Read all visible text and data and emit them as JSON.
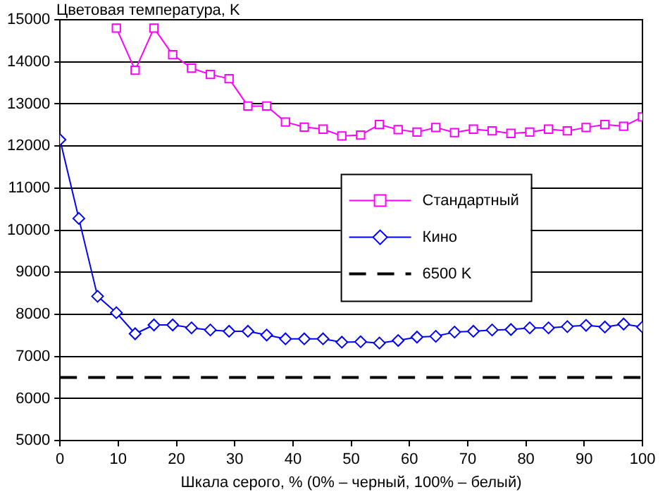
{
  "chart_data": {
    "type": "line",
    "ylabel": "Цветовая температура, K",
    "xlabel": "Шкала серого, % (0% – черный, 100% – белый)",
    "x": [
      0,
      3.23,
      6.45,
      9.68,
      12.9,
      16.13,
      19.35,
      22.58,
      25.81,
      29.03,
      32.26,
      35.48,
      38.71,
      41.94,
      45.16,
      48.39,
      51.61,
      54.84,
      58.06,
      61.29,
      64.52,
      67.74,
      70.97,
      74.19,
      77.42,
      80.65,
      83.87,
      87.1,
      90.32,
      93.55,
      96.77,
      100
    ],
    "series": [
      {
        "name": "Стандартный",
        "color": "#ff00ff",
        "marker": "square",
        "values": [
          null,
          null,
          null,
          14800,
          13800,
          14800,
          14170,
          13850,
          13700,
          13600,
          12950,
          12950,
          12570,
          12450,
          12400,
          12240,
          12260,
          12510,
          12390,
          12330,
          12440,
          12320,
          12400,
          12360,
          12300,
          12330,
          12400,
          12360,
          12440,
          12510,
          12470,
          12690
        ]
      },
      {
        "name": "Кино",
        "color": "#0000ff",
        "marker": "diamond",
        "values": [
          12150,
          10280,
          8430,
          8040,
          7540,
          7750,
          7750,
          7680,
          7630,
          7600,
          7600,
          7510,
          7420,
          7420,
          7420,
          7340,
          7350,
          7320,
          7380,
          7460,
          7480,
          7580,
          7600,
          7630,
          7640,
          7680,
          7680,
          7710,
          7740,
          7700,
          7770,
          7700
        ]
      }
    ],
    "ref_lines": [
      {
        "axis": "y",
        "value": 6500,
        "label": "6500 K",
        "color": "#000000",
        "line_style": "dashed"
      }
    ],
    "xlim": [
      0,
      100
    ],
    "xticks": [
      0,
      10,
      20,
      30,
      40,
      50,
      60,
      70,
      80,
      90,
      100
    ],
    "ylim": [
      5000,
      15000
    ],
    "yticks": [
      5000,
      6000,
      7000,
      8000,
      9000,
      10000,
      11000,
      12000,
      13000,
      14000,
      15000
    ],
    "grid": "y",
    "legend": "center"
  }
}
